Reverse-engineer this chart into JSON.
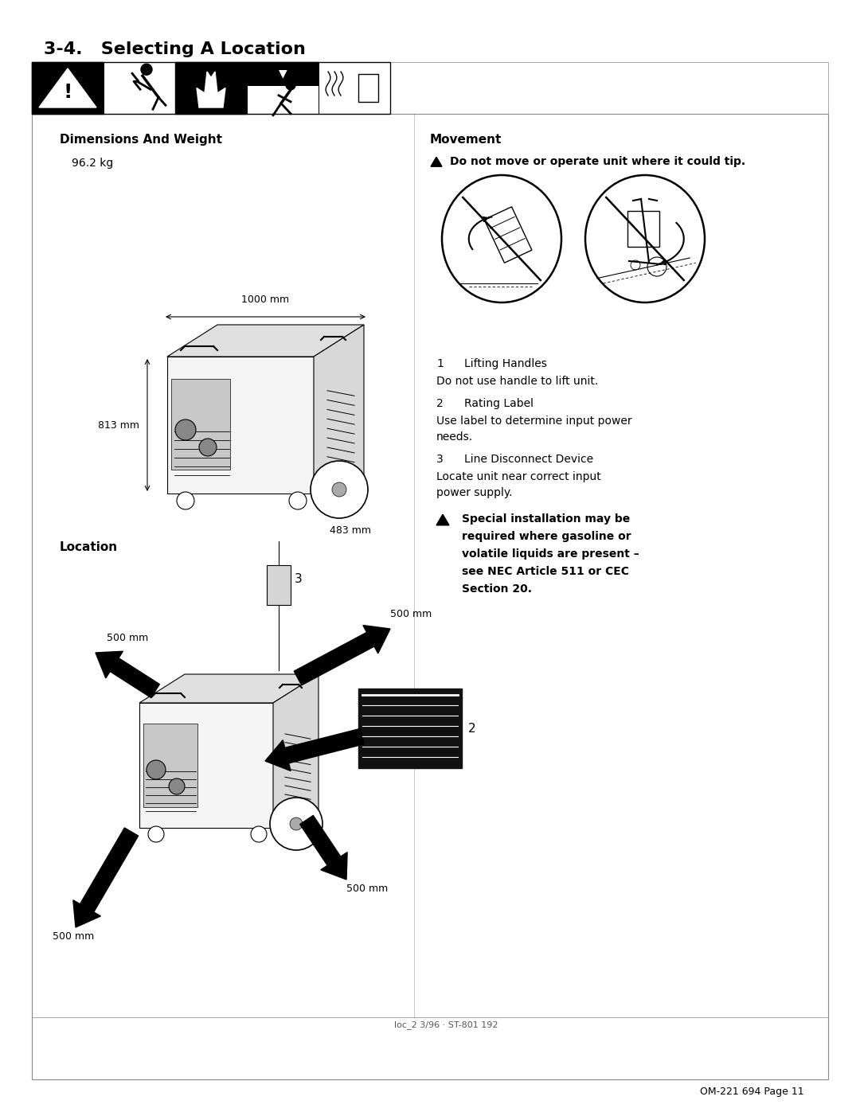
{
  "page_bg": "#ffffff",
  "title": "3-4.   Selecting A Location",
  "dim_weight_header": "Dimensions And Weight",
  "weight_text": "96.2 kg",
  "dim_1000": "1000 mm",
  "dim_813": "813 mm",
  "dim_483": "483 mm",
  "movement_header": "Movement",
  "movement_warning": "Do not move or operate unit where it could tip.",
  "location_header": "Location",
  "item1_num": "1",
  "item1_label": "Lifting Handles",
  "item1_desc": "Do not use handle to lift unit.",
  "item2_num": "2",
  "item2_label": "Rating Label",
  "item2_desc": "Use label to determine input power\nneeds.",
  "item3_num": "3",
  "item3_label": "Line Disconnect Device",
  "item3_desc": "Locate unit near correct input\npower supply.",
  "warning_line1": "Special installation may be",
  "warning_line2": "required where gasoline or",
  "warning_line3": "volatile liquids are present –",
  "warning_line4": "see NEC Article 511 or CEC",
  "warning_line5": "Section 20.",
  "footer_left": "loc_2 3/96 · ST-801 192",
  "footer_right": "OM-221 694 Page 11",
  "label_2": "2",
  "label_3": "3",
  "mm_500_labels": [
    "500 mm",
    "500 mm",
    "500 mm",
    "500 mm"
  ],
  "page_width": 10.8,
  "page_height": 13.97
}
